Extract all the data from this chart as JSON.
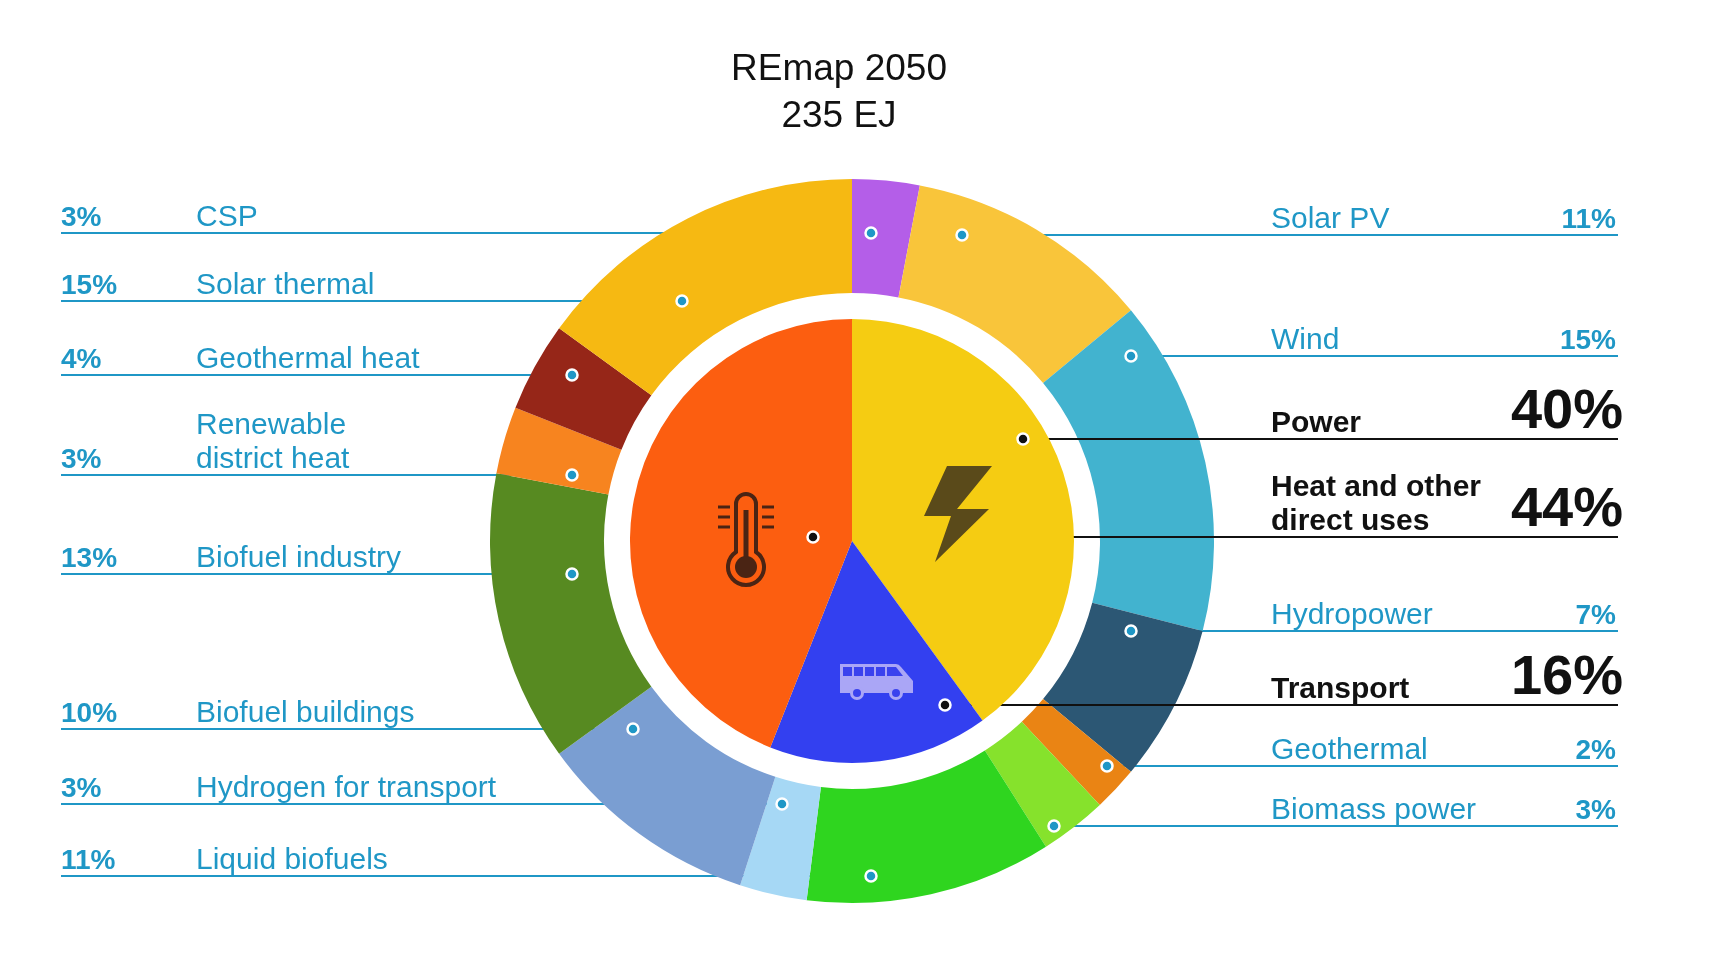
{
  "chart_data": [
    {
      "type": "donut",
      "title": "REmap 2050",
      "subtitle": "235 EJ",
      "categories": [
        "CSP",
        "Solar PV",
        "Wind",
        "Hydropower",
        "Geothermal",
        "Biomass power",
        "Liquid biofuels",
        "Hydrogen for transport",
        "Biofuel buildings",
        "Biofuel industry",
        "Renewable district heat",
        "Geothermal heat",
        "Solar thermal"
      ],
      "values": [
        3,
        11,
        15,
        7,
        2,
        3,
        11,
        3,
        10,
        13,
        3,
        4,
        15
      ],
      "value_labels": [
        "3%",
        "11%",
        "15%",
        "7%",
        "2%",
        "3%",
        "11%",
        "3%",
        "10%",
        "13%",
        "3%",
        "4%",
        "15%"
      ],
      "colors": [
        "#b45ee8",
        "#f9c53a",
        "#42b3cf",
        "#2c5774",
        "#ea8414",
        "#86e22c",
        "#2fd51f",
        "#a6d8f5",
        "#7a9ed2",
        "#578a21",
        "#f7841f",
        "#962618",
        "#f6b912"
      ]
    },
    {
      "type": "pie",
      "categories": [
        "Power",
        "Transport",
        "Heat and other direct uses"
      ],
      "values": [
        40,
        16,
        44
      ],
      "value_labels": [
        "40%",
        "16%",
        "44%"
      ],
      "colors": [
        "#f5cc12",
        "#3340f0",
        "#fc5e10"
      ]
    }
  ]
}
